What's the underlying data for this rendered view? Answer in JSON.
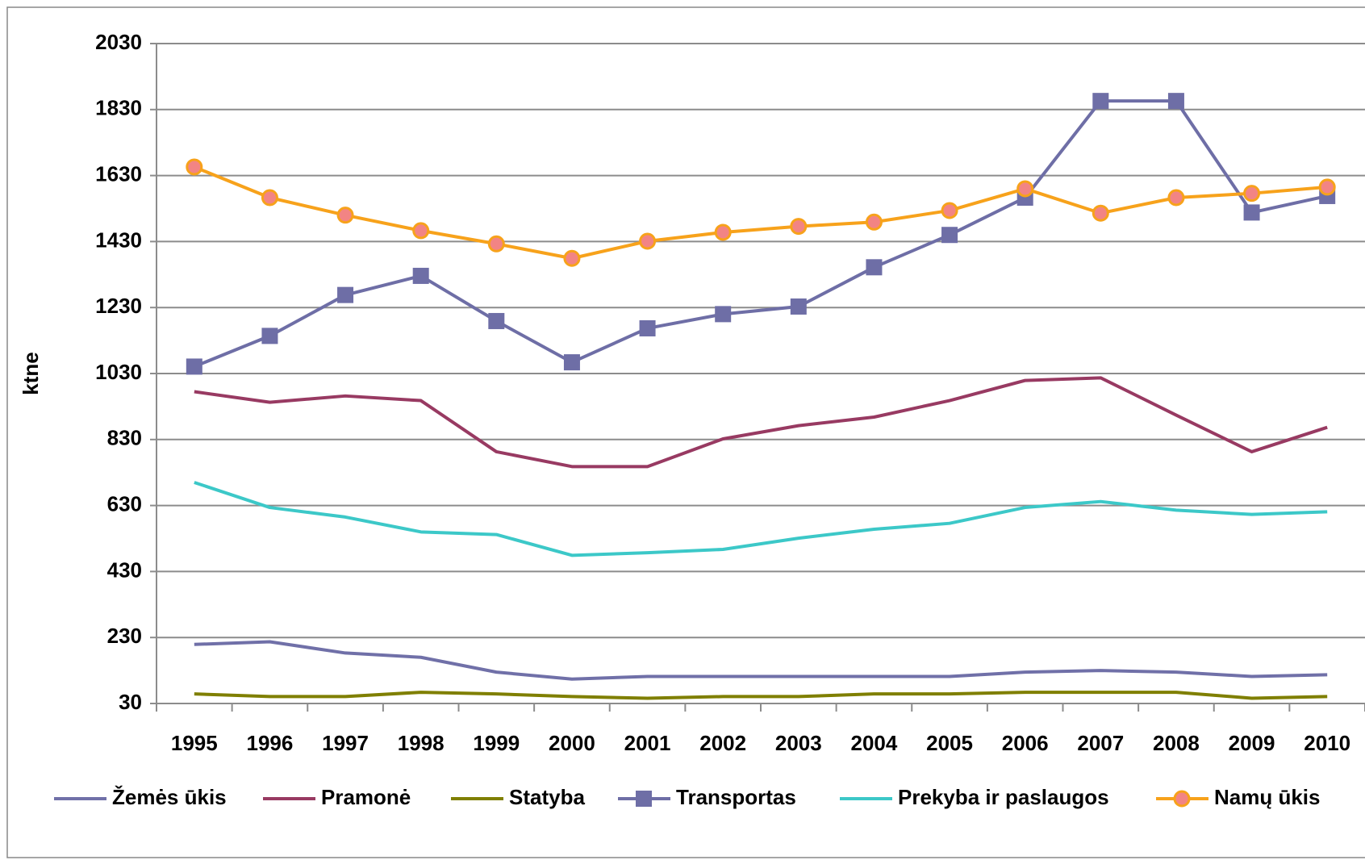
{
  "chart_data": {
    "type": "line",
    "y_label": "ktne",
    "categories": [
      "1995",
      "1996",
      "1997",
      "1998",
      "1999",
      "2000",
      "2001",
      "2002",
      "2003",
      "2004",
      "2005",
      "2006",
      "2007",
      "2008",
      "2009",
      "2010"
    ],
    "ylim": [
      30,
      2030
    ],
    "yticks": [
      30,
      230,
      430,
      630,
      830,
      1030,
      1230,
      1430,
      1630,
      1830,
      2030
    ],
    "grid": true,
    "legend": "bottom",
    "series": [
      {
        "name": "Žemės ūkis",
        "color": "#7070a8",
        "values": [
          209,
          217,
          183,
          170,
          125,
          104,
          112,
          112,
          112,
          112,
          112,
          125,
          130,
          125,
          112,
          117
        ]
      },
      {
        "name": "Pramonė",
        "color": "#983a62",
        "values": [
          975,
          943,
          962,
          948,
          793,
          748,
          748,
          832,
          872,
          898,
          948,
          1009,
          1017,
          904,
          793,
          867
        ]
      },
      {
        "name": "Statyba",
        "color": "#7f7f00",
        "values": [
          59,
          51,
          51,
          64,
          59,
          51,
          46,
          51,
          51,
          59,
          59,
          64,
          64,
          64,
          46,
          51
        ]
      },
      {
        "name": "Transportas",
        "color": "#6e6ea6",
        "marker": "square",
        "marker_color": "#6e6ea6",
        "values": [
          1051,
          1144,
          1268,
          1326,
          1189,
          1064,
          1167,
          1210,
          1233,
          1352,
          1450,
          1563,
          1856,
          1856,
          1518,
          1568
        ]
      },
      {
        "name": "Prekyba ir paslaugos",
        "color": "#3cc8c8",
        "values": [
          700,
          624,
          595,
          550,
          542,
          479,
          487,
          497,
          531,
          558,
          576,
          624,
          642,
          616,
          603,
          611
        ]
      },
      {
        "name": "Namų ūkis",
        "color": "#f7a21b",
        "marker": "circle",
        "marker_color": "#f28484",
        "values": [
          1656,
          1563,
          1510,
          1463,
          1423,
          1379,
          1431,
          1458,
          1476,
          1489,
          1524,
          1590,
          1516,
          1563,
          1576,
          1595
        ]
      }
    ]
  }
}
